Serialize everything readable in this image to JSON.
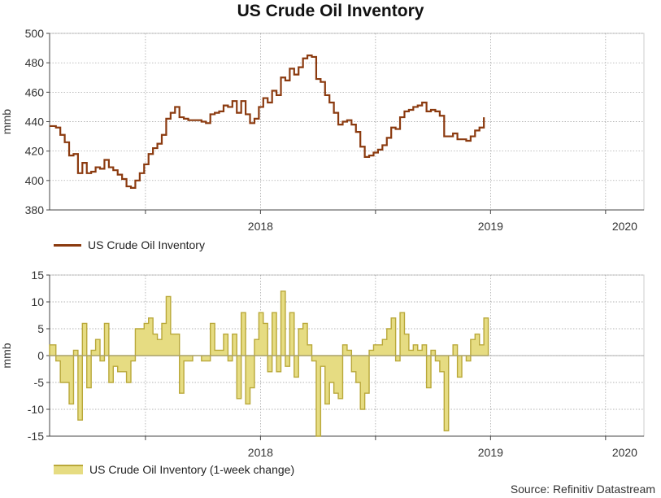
{
  "title": "US Crude Oil Inventory",
  "source": "Source: Refinitiv Datastream",
  "colors": {
    "line": "#8B3A0F",
    "area_fill": "#E6DC82",
    "area_stroke": "#B9A83A",
    "grid": "#9a9a9a",
    "axis": "#444444"
  },
  "chart_data": [
    {
      "type": "line",
      "title": "US Crude Oil Inventory",
      "ylabel": "mmb",
      "ylim": [
        380,
        500
      ],
      "yticks": [
        "500",
        "480",
        "460",
        "440",
        "420",
        "400",
        "380"
      ],
      "xrange": [
        "2017-08",
        "2020-03"
      ],
      "xticks": [
        "2018",
        "2019",
        "2020"
      ],
      "legend": "US Crude Oil Inventory",
      "series": [
        {
          "name": "US Crude Oil Inventory",
          "start": "2017-08-04",
          "frequency": "weekly",
          "values": [
            437,
            436,
            431,
            426,
            417,
            418,
            405,
            412,
            405,
            406,
            409,
            408,
            414,
            409,
            407,
            404,
            401,
            396,
            395,
            400,
            405,
            411,
            418,
            422,
            425,
            431,
            442,
            446,
            450,
            443,
            442,
            441,
            441,
            441,
            440,
            439,
            445,
            446,
            447,
            451,
            450,
            454,
            446,
            454,
            445,
            439,
            442,
            450,
            456,
            453,
            461,
            458,
            470,
            468,
            476,
            472,
            477,
            483,
            485,
            484,
            469,
            467,
            458,
            453,
            446,
            438,
            440,
            441,
            438,
            433,
            423,
            416,
            417,
            419,
            421,
            424,
            429,
            436,
            435,
            443,
            447,
            448,
            450,
            451,
            453,
            447,
            448,
            447,
            444,
            430,
            430,
            432,
            428,
            428,
            427,
            430,
            434,
            436,
            443
          ]
        }
      ]
    },
    {
      "type": "area",
      "title": "US Crude Oil Inventory (1-week change)",
      "ylabel": "mmb",
      "ylim": [
        -15,
        15
      ],
      "yticks": [
        "15",
        "10",
        "5",
        "0",
        "-5",
        "-10",
        "-15"
      ],
      "xrange": [
        "2017-08",
        "2020-03"
      ],
      "xticks": [
        "2018",
        "2019",
        "2020"
      ],
      "legend": "US Crude Oil Inventory (1-week change)",
      "series": [
        {
          "name": "US Crude Oil Inventory (1-week change)",
          "start": "2017-08-04",
          "frequency": "weekly",
          "values": [
            2,
            -1,
            -5,
            -5,
            -9,
            1,
            -12,
            6,
            -6,
            1,
            3,
            -1,
            6,
            -5,
            -2,
            -3,
            -3,
            -5,
            -1,
            5,
            5,
            6,
            7,
            4,
            3,
            6,
            11,
            4,
            4,
            -7,
            -1,
            -1,
            0,
            0,
            -1,
            -1,
            6,
            1,
            1,
            4,
            -1,
            4,
            -8,
            8,
            -9,
            -6,
            3,
            8,
            6,
            -3,
            8,
            -3,
            12,
            -2,
            8,
            -4,
            5,
            6,
            2,
            -1,
            -15,
            -2,
            -9,
            -5,
            -7,
            -8,
            2,
            1,
            -3,
            -5,
            -10,
            -7,
            1,
            2,
            2,
            3,
            5,
            7,
            -1,
            8,
            4,
            1,
            2,
            1,
            2,
            -6,
            1,
            -1,
            -3,
            -14,
            0,
            2,
            -4,
            0,
            -1,
            3,
            4,
            2,
            7
          ]
        }
      ]
    }
  ]
}
